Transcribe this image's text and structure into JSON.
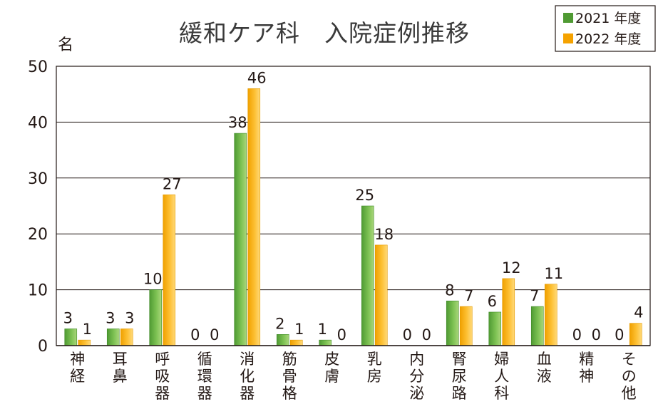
{
  "chart_data": {
    "type": "bar",
    "title": "緩和ケア科　入院症例推移",
    "ylabel": "名",
    "ylim": [
      0,
      50
    ],
    "yticks": [
      0,
      10,
      20,
      30,
      40,
      50
    ],
    "grid": true,
    "legend_position": "top-right",
    "categories": [
      "神経",
      "耳鼻",
      "呼吸器",
      "循環器",
      "消化器",
      "筋骨格",
      "皮膚",
      "乳房",
      "内分泌",
      "腎尿路",
      "婦人科",
      "血液",
      "精神",
      "その他"
    ],
    "series": [
      {
        "name": "2021 年度",
        "color": "#5aa53a",
        "values": [
          3,
          3,
          10,
          0,
          38,
          2,
          1,
          25,
          0,
          8,
          6,
          7,
          0,
          0
        ]
      },
      {
        "name": "2022 年度",
        "color": "#f5a200",
        "values": [
          1,
          3,
          27,
          0,
          46,
          1,
          0,
          18,
          0,
          7,
          12,
          11,
          0,
          4
        ]
      }
    ]
  }
}
